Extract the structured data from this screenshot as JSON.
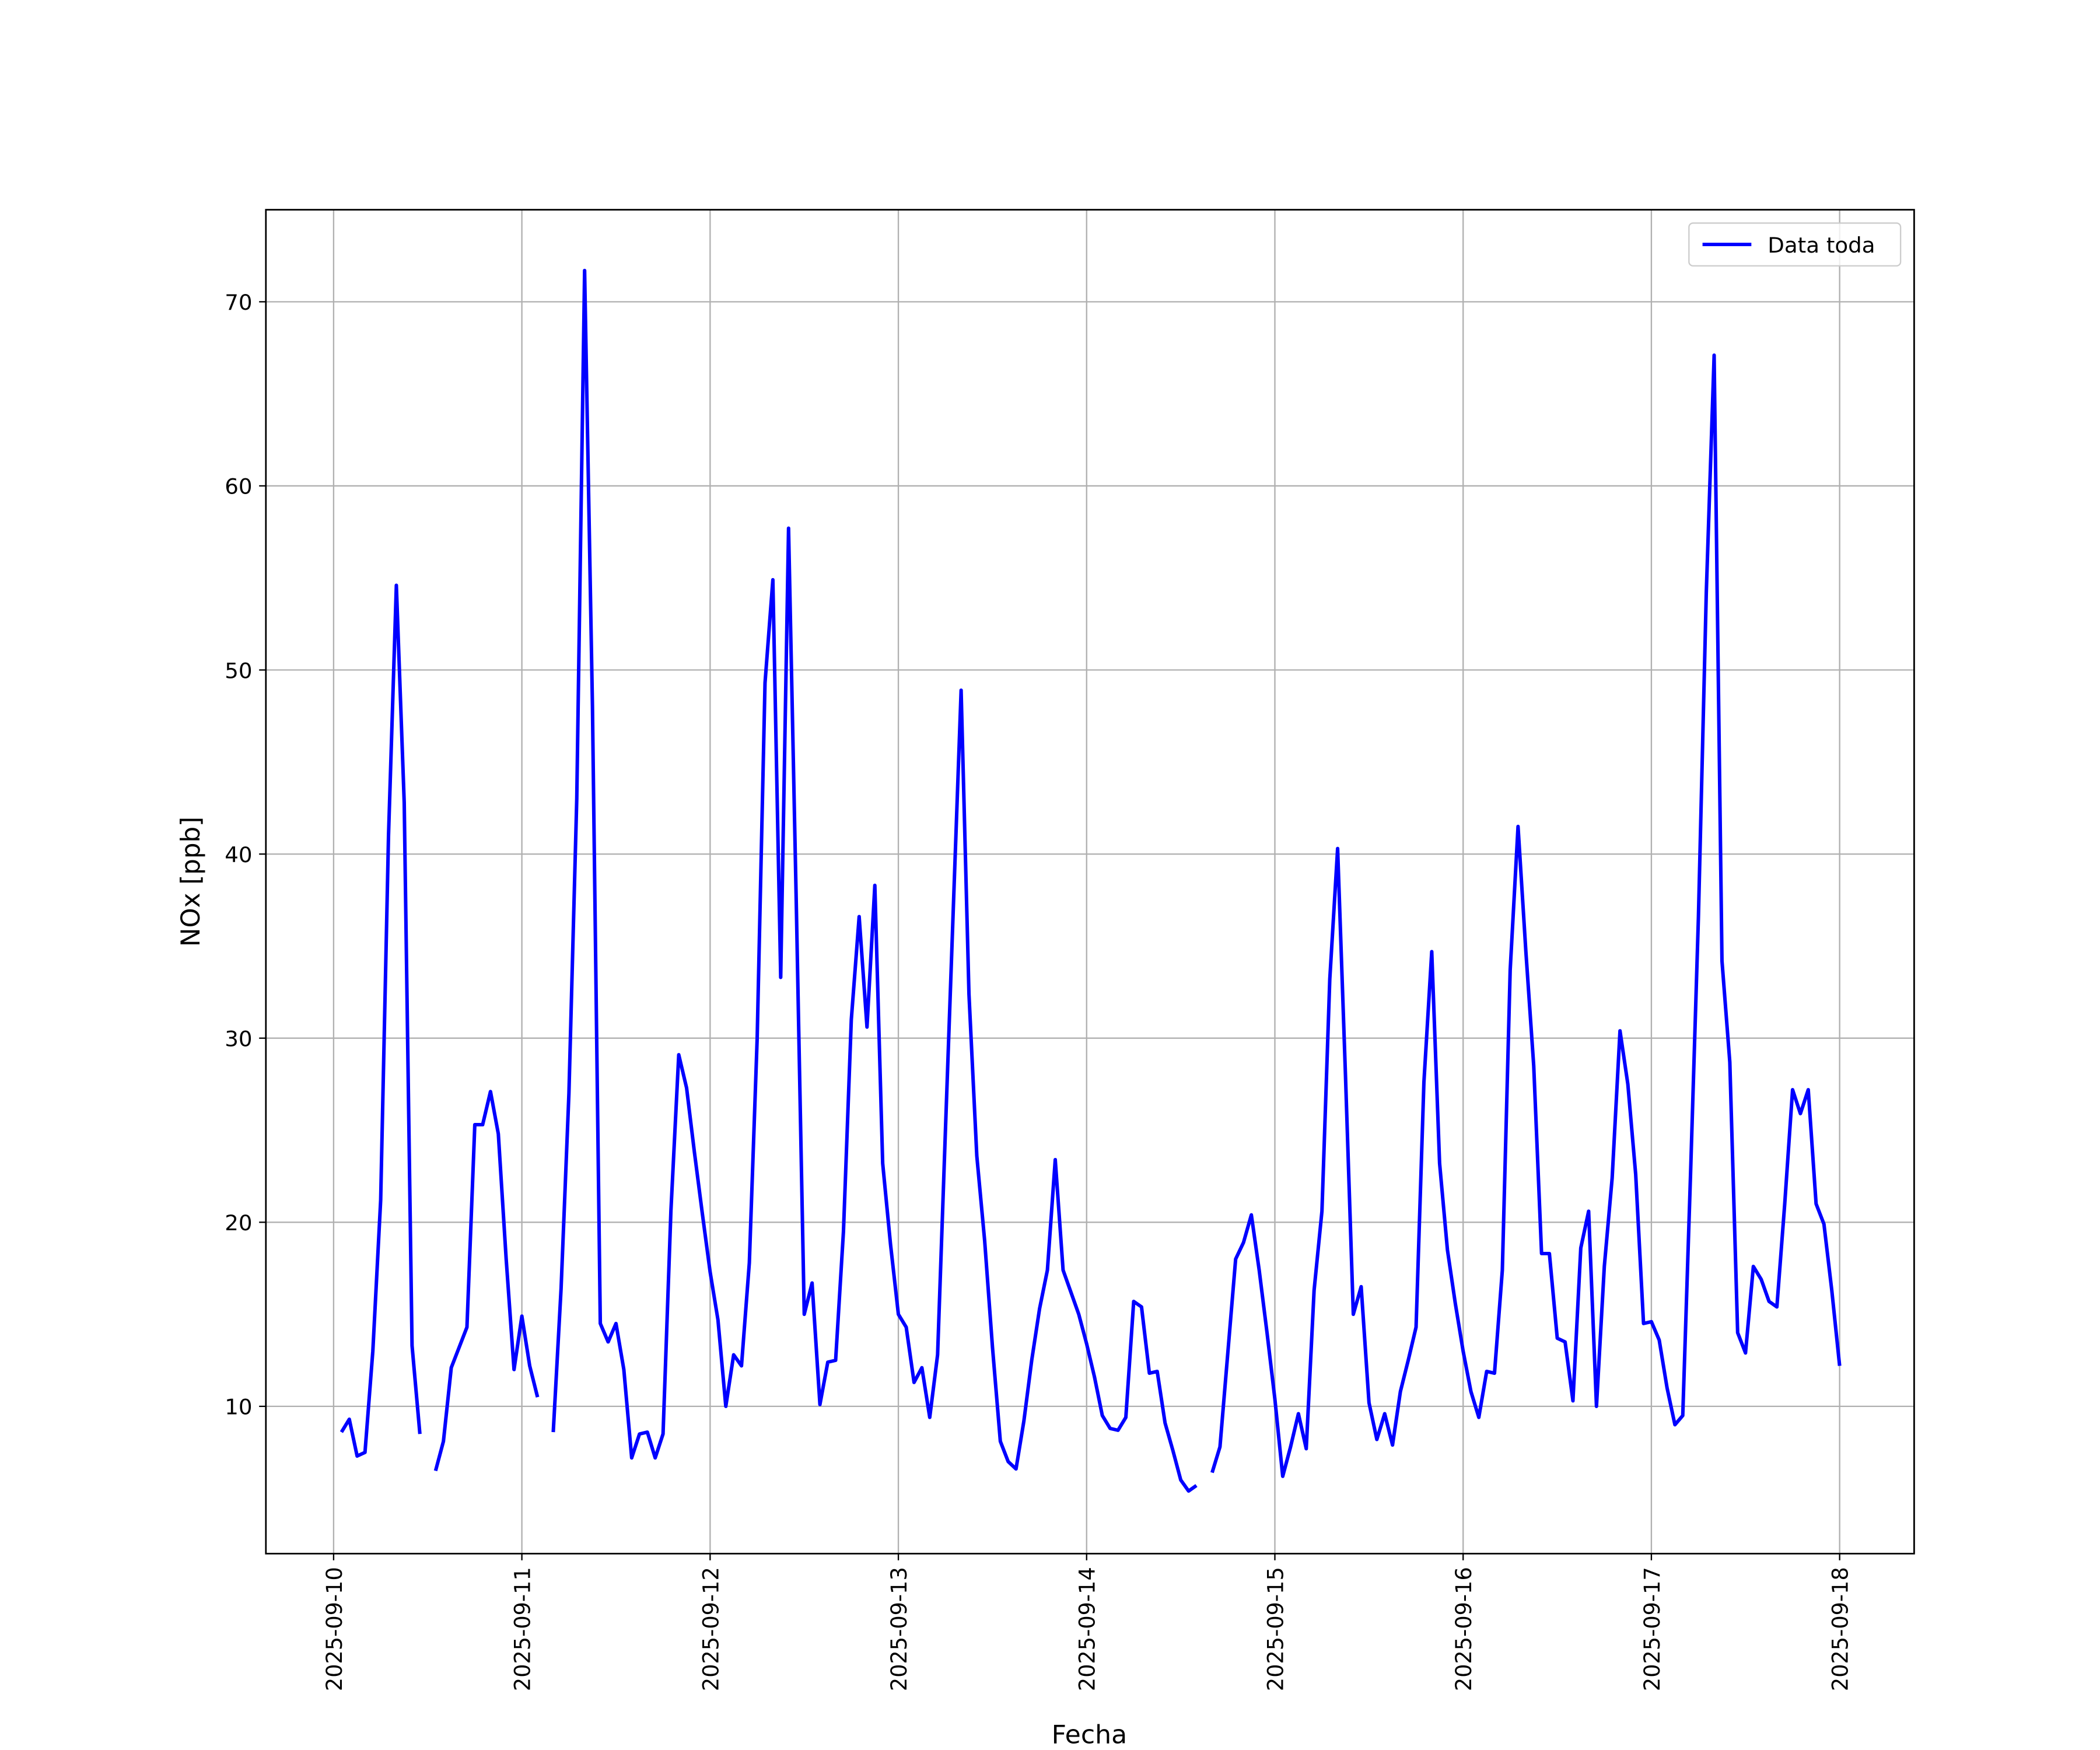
{
  "chart_data": {
    "type": "line",
    "xlabel": "Fecha",
    "ylabel": "NOx [ppb]",
    "x": [
      "2025-09-10 01:00",
      "2025-09-10 02:00",
      "2025-09-10 03:00",
      "2025-09-10 04:00",
      "2025-09-10 05:00",
      "2025-09-10 06:00",
      "2025-09-10 07:00",
      "2025-09-10 08:00",
      "2025-09-10 09:00",
      "2025-09-10 10:00",
      "2025-09-10 11:00",
      "2025-09-10 12:00",
      "2025-09-10 13:00",
      "2025-09-10 14:00",
      "2025-09-10 15:00",
      "2025-09-10 16:00",
      "2025-09-10 17:00",
      "2025-09-10 18:00",
      "2025-09-10 19:00",
      "2025-09-10 20:00",
      "2025-09-10 21:00",
      "2025-09-10 22:00",
      "2025-09-10 23:00",
      "2025-09-11 00:00",
      "2025-09-11 01:00",
      "2025-09-11 02:00",
      "2025-09-11 03:00",
      "2025-09-11 04:00",
      "2025-09-11 05:00",
      "2025-09-11 06:00",
      "2025-09-11 07:00",
      "2025-09-11 08:00",
      "2025-09-11 09:00",
      "2025-09-11 10:00",
      "2025-09-11 11:00",
      "2025-09-11 12:00",
      "2025-09-11 13:00",
      "2025-09-11 14:00",
      "2025-09-11 15:00",
      "2025-09-11 16:00",
      "2025-09-11 17:00",
      "2025-09-11 18:00",
      "2025-09-11 19:00",
      "2025-09-11 20:00",
      "2025-09-11 21:00",
      "2025-09-11 22:00",
      "2025-09-11 23:00",
      "2025-09-12 00:00",
      "2025-09-12 01:00",
      "2025-09-12 02:00",
      "2025-09-12 03:00",
      "2025-09-12 04:00",
      "2025-09-12 05:00",
      "2025-09-12 06:00",
      "2025-09-12 07:00",
      "2025-09-12 08:00",
      "2025-09-12 09:00",
      "2025-09-12 10:00",
      "2025-09-12 11:00",
      "2025-09-12 12:00",
      "2025-09-12 13:00",
      "2025-09-12 14:00",
      "2025-09-12 15:00",
      "2025-09-12 16:00",
      "2025-09-12 17:00",
      "2025-09-12 18:00",
      "2025-09-12 19:00",
      "2025-09-12 20:00",
      "2025-09-12 21:00",
      "2025-09-12 22:00",
      "2025-09-12 23:00",
      "2025-09-13 00:00",
      "2025-09-13 01:00",
      "2025-09-13 02:00",
      "2025-09-13 03:00",
      "2025-09-13 04:00",
      "2025-09-13 05:00",
      "2025-09-13 06:00",
      "2025-09-13 07:00",
      "2025-09-13 08:00",
      "2025-09-13 09:00",
      "2025-09-13 10:00",
      "2025-09-13 11:00",
      "2025-09-13 12:00",
      "2025-09-13 13:00",
      "2025-09-13 14:00",
      "2025-09-13 15:00",
      "2025-09-13 16:00",
      "2025-09-13 17:00",
      "2025-09-13 18:00",
      "2025-09-13 19:00",
      "2025-09-13 20:00",
      "2025-09-13 21:00",
      "2025-09-13 22:00",
      "2025-09-13 23:00",
      "2025-09-14 00:00",
      "2025-09-14 01:00",
      "2025-09-14 02:00",
      "2025-09-14 03:00",
      "2025-09-14 04:00",
      "2025-09-14 05:00",
      "2025-09-14 06:00",
      "2025-09-14 07:00",
      "2025-09-14 08:00",
      "2025-09-14 09:00",
      "2025-09-14 10:00",
      "2025-09-14 11:00",
      "2025-09-14 12:00",
      "2025-09-14 13:00",
      "2025-09-14 14:00",
      "2025-09-14 15:00",
      "2025-09-14 16:00",
      "2025-09-14 17:00",
      "2025-09-14 18:00",
      "2025-09-14 19:00",
      "2025-09-14 20:00",
      "2025-09-14 21:00",
      "2025-09-14 22:00",
      "2025-09-14 23:00",
      "2025-09-15 00:00",
      "2025-09-15 01:00",
      "2025-09-15 02:00",
      "2025-09-15 03:00",
      "2025-09-15 04:00",
      "2025-09-15 05:00",
      "2025-09-15 06:00",
      "2025-09-15 07:00",
      "2025-09-15 08:00",
      "2025-09-15 09:00",
      "2025-09-15 10:00",
      "2025-09-15 11:00",
      "2025-09-15 12:00",
      "2025-09-15 13:00",
      "2025-09-15 14:00",
      "2025-09-15 15:00",
      "2025-09-15 16:00",
      "2025-09-15 17:00",
      "2025-09-15 18:00",
      "2025-09-15 19:00",
      "2025-09-15 20:00",
      "2025-09-15 21:00",
      "2025-09-15 22:00",
      "2025-09-15 23:00",
      "2025-09-16 00:00",
      "2025-09-16 01:00",
      "2025-09-16 02:00",
      "2025-09-16 03:00",
      "2025-09-16 04:00",
      "2025-09-16 05:00",
      "2025-09-16 06:00",
      "2025-09-16 07:00",
      "2025-09-16 08:00",
      "2025-09-16 09:00",
      "2025-09-16 10:00",
      "2025-09-16 11:00",
      "2025-09-16 12:00",
      "2025-09-16 13:00",
      "2025-09-16 14:00",
      "2025-09-16 15:00",
      "2025-09-16 16:00",
      "2025-09-16 17:00",
      "2025-09-16 18:00",
      "2025-09-16 19:00",
      "2025-09-16 20:00",
      "2025-09-16 21:00",
      "2025-09-16 22:00",
      "2025-09-16 23:00",
      "2025-09-17 00:00",
      "2025-09-17 01:00",
      "2025-09-17 02:00",
      "2025-09-17 03:00",
      "2025-09-17 04:00",
      "2025-09-17 05:00",
      "2025-09-17 06:00",
      "2025-09-17 07:00",
      "2025-09-17 08:00",
      "2025-09-17 09:00",
      "2025-09-17 10:00",
      "2025-09-17 11:00",
      "2025-09-17 12:00",
      "2025-09-17 13:00",
      "2025-09-17 14:00",
      "2025-09-17 15:00",
      "2025-09-17 16:00",
      "2025-09-17 17:00",
      "2025-09-17 18:00",
      "2025-09-17 19:00",
      "2025-09-17 20:00",
      "2025-09-17 21:00",
      "2025-09-17 22:00",
      "2025-09-17 23:00",
      "2025-09-18 00:00"
    ],
    "series": [
      {
        "name": "Data toda",
        "color": "#0000ff",
        "values": [
          8.6,
          9.3,
          7.3,
          7.5,
          13,
          21.2,
          41,
          54.6,
          42.8,
          13.3,
          8.5,
          null,
          6.5,
          8.1,
          12.1,
          13.2,
          14.3,
          25.3,
          25.3,
          27.1,
          24.8,
          18,
          12,
          14.9,
          12.2,
          10.5,
          null,
          8.6,
          16.4,
          27,
          43,
          71.7,
          48,
          14.5,
          13.5,
          14.5,
          12,
          7.2,
          8.5,
          8.6,
          7.2,
          8.5,
          20.6,
          29.1,
          27.3,
          23.8,
          20.5,
          17.3,
          14.7,
          10,
          12.8,
          12.2,
          17.8,
          30,
          49.3,
          54.9,
          33.3,
          57.7,
          37,
          15,
          16.7,
          10.1,
          12.4,
          12.5,
          19.5,
          31,
          36.6,
          30.6,
          38.3,
          23.2,
          18.8,
          15,
          14.3,
          11.3,
          12.1,
          9.4,
          12.8,
          25,
          37,
          48.9,
          32.4,
          23.6,
          19,
          13.2,
          8.1,
          7,
          6.6,
          9.2,
          12.5,
          15.3,
          17.4,
          23.4,
          17.4,
          16.2,
          15,
          13.4,
          11.6,
          9.5,
          8.8,
          8.7,
          9.4,
          15.7,
          15.4,
          11.8,
          11.9,
          9.1,
          7.6,
          6,
          5.4,
          5.7,
          null,
          6.4,
          7.8,
          12.9,
          18,
          18.9,
          20.4,
          17.4,
          14,
          10.4,
          6.2,
          7.8,
          9.6,
          7.7,
          16.3,
          20.6,
          33.2,
          40.3,
          28,
          15,
          16.5,
          10.2,
          8.2,
          9.6,
          7.9,
          10.8,
          12.5,
          14.3,
          27.6,
          34.7,
          23.2,
          18.5,
          15.6,
          13,
          10.8,
          9.4,
          11.9,
          11.8,
          17.4,
          33.7,
          41.5,
          34.7,
          28.5,
          18.3,
          18.3,
          13.7,
          13.5,
          10.3,
          18.6,
          20.6,
          10,
          17.6,
          22.4,
          30.4,
          27.5,
          22.6,
          14.5,
          14.6,
          13.6,
          11,
          9,
          9.5,
          22.7,
          36.6,
          54.2,
          67.1,
          34.2,
          28.7,
          14,
          12.9,
          17.6,
          16.9,
          15.7,
          15.4,
          21,
          27.2,
          25.9,
          27.2,
          21,
          19.9,
          16.3,
          12.2
        ]
      }
    ],
    "xlim": [
      "2025-09-09 15:22",
      "2025-09-18 09:30"
    ],
    "xticks": [
      "2025-09-10",
      "2025-09-11",
      "2025-09-12",
      "2025-09-13",
      "2025-09-14",
      "2025-09-15",
      "2025-09-16",
      "2025-09-17",
      "2025-09-18"
    ],
    "ylim": [
      2,
      75
    ],
    "yticks": [
      10,
      20,
      30,
      40,
      50,
      60,
      70
    ],
    "grid": true,
    "legend": "upper right"
  }
}
